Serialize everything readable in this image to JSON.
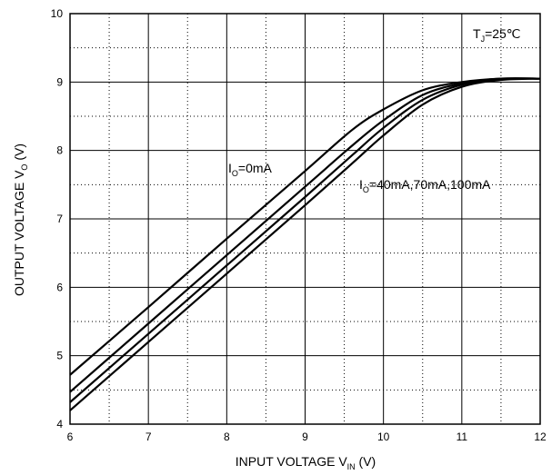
{
  "chart_data": {
    "type": "line",
    "title": "",
    "xlabel": {
      "main": "INPUT VOLTAGE   V",
      "sub": "IN",
      "unit": "   (V)"
    },
    "ylabel": {
      "main": "OUTPUT VOLTAGE   V",
      "sub": "O",
      "unit": "   (V)"
    },
    "xlim": [
      6,
      12
    ],
    "ylim": [
      4,
      10
    ],
    "x_ticks": [
      6,
      7,
      8,
      9,
      10,
      11,
      12
    ],
    "y_ticks": [
      4,
      5,
      6,
      7,
      8,
      9,
      10
    ],
    "grid": {
      "major": "solid",
      "minor": "dotted"
    },
    "annotations": [
      {
        "id": "tj",
        "main": "T",
        "sub": "J",
        "rest": "=25℃"
      },
      {
        "id": "io0",
        "main": "I",
        "sub": "O",
        "rest": "=0mA"
      },
      {
        "id": "io_other",
        "main": "I",
        "sub": "O",
        "rest": "=40mA,70mA,100mA"
      }
    ],
    "series": [
      {
        "label": "I_O=0mA",
        "x": [
          6.0,
          7.0,
          8.0,
          9.0,
          9.6,
          10.0,
          10.5,
          11.0,
          11.5,
          12.0
        ],
        "y": [
          4.72,
          5.71,
          6.71,
          7.7,
          8.3,
          8.6,
          8.88,
          9.0,
          9.05,
          9.05
        ]
      },
      {
        "label": "I_O=40mA",
        "x": [
          6.0,
          7.0,
          8.0,
          9.0,
          9.6,
          10.0,
          10.5,
          11.0,
          11.5,
          12.0
        ],
        "y": [
          4.47,
          5.47,
          6.47,
          7.47,
          8.07,
          8.44,
          8.81,
          8.98,
          9.05,
          9.05
        ]
      },
      {
        "label": "I_O=70mA",
        "x": [
          6.0,
          7.0,
          8.0,
          9.0,
          9.6,
          10.0,
          10.5,
          11.0,
          11.5,
          12.0
        ],
        "y": [
          4.32,
          5.32,
          6.32,
          7.32,
          7.93,
          8.33,
          8.74,
          8.96,
          9.04,
          9.05
        ]
      },
      {
        "label": "I_O=100mA",
        "x": [
          6.0,
          7.0,
          8.0,
          9.0,
          9.6,
          10.0,
          10.5,
          11.0,
          11.5,
          12.0
        ],
        "y": [
          4.2,
          5.2,
          6.2,
          7.2,
          7.81,
          8.22,
          8.67,
          8.93,
          9.03,
          9.05
        ]
      }
    ]
  }
}
